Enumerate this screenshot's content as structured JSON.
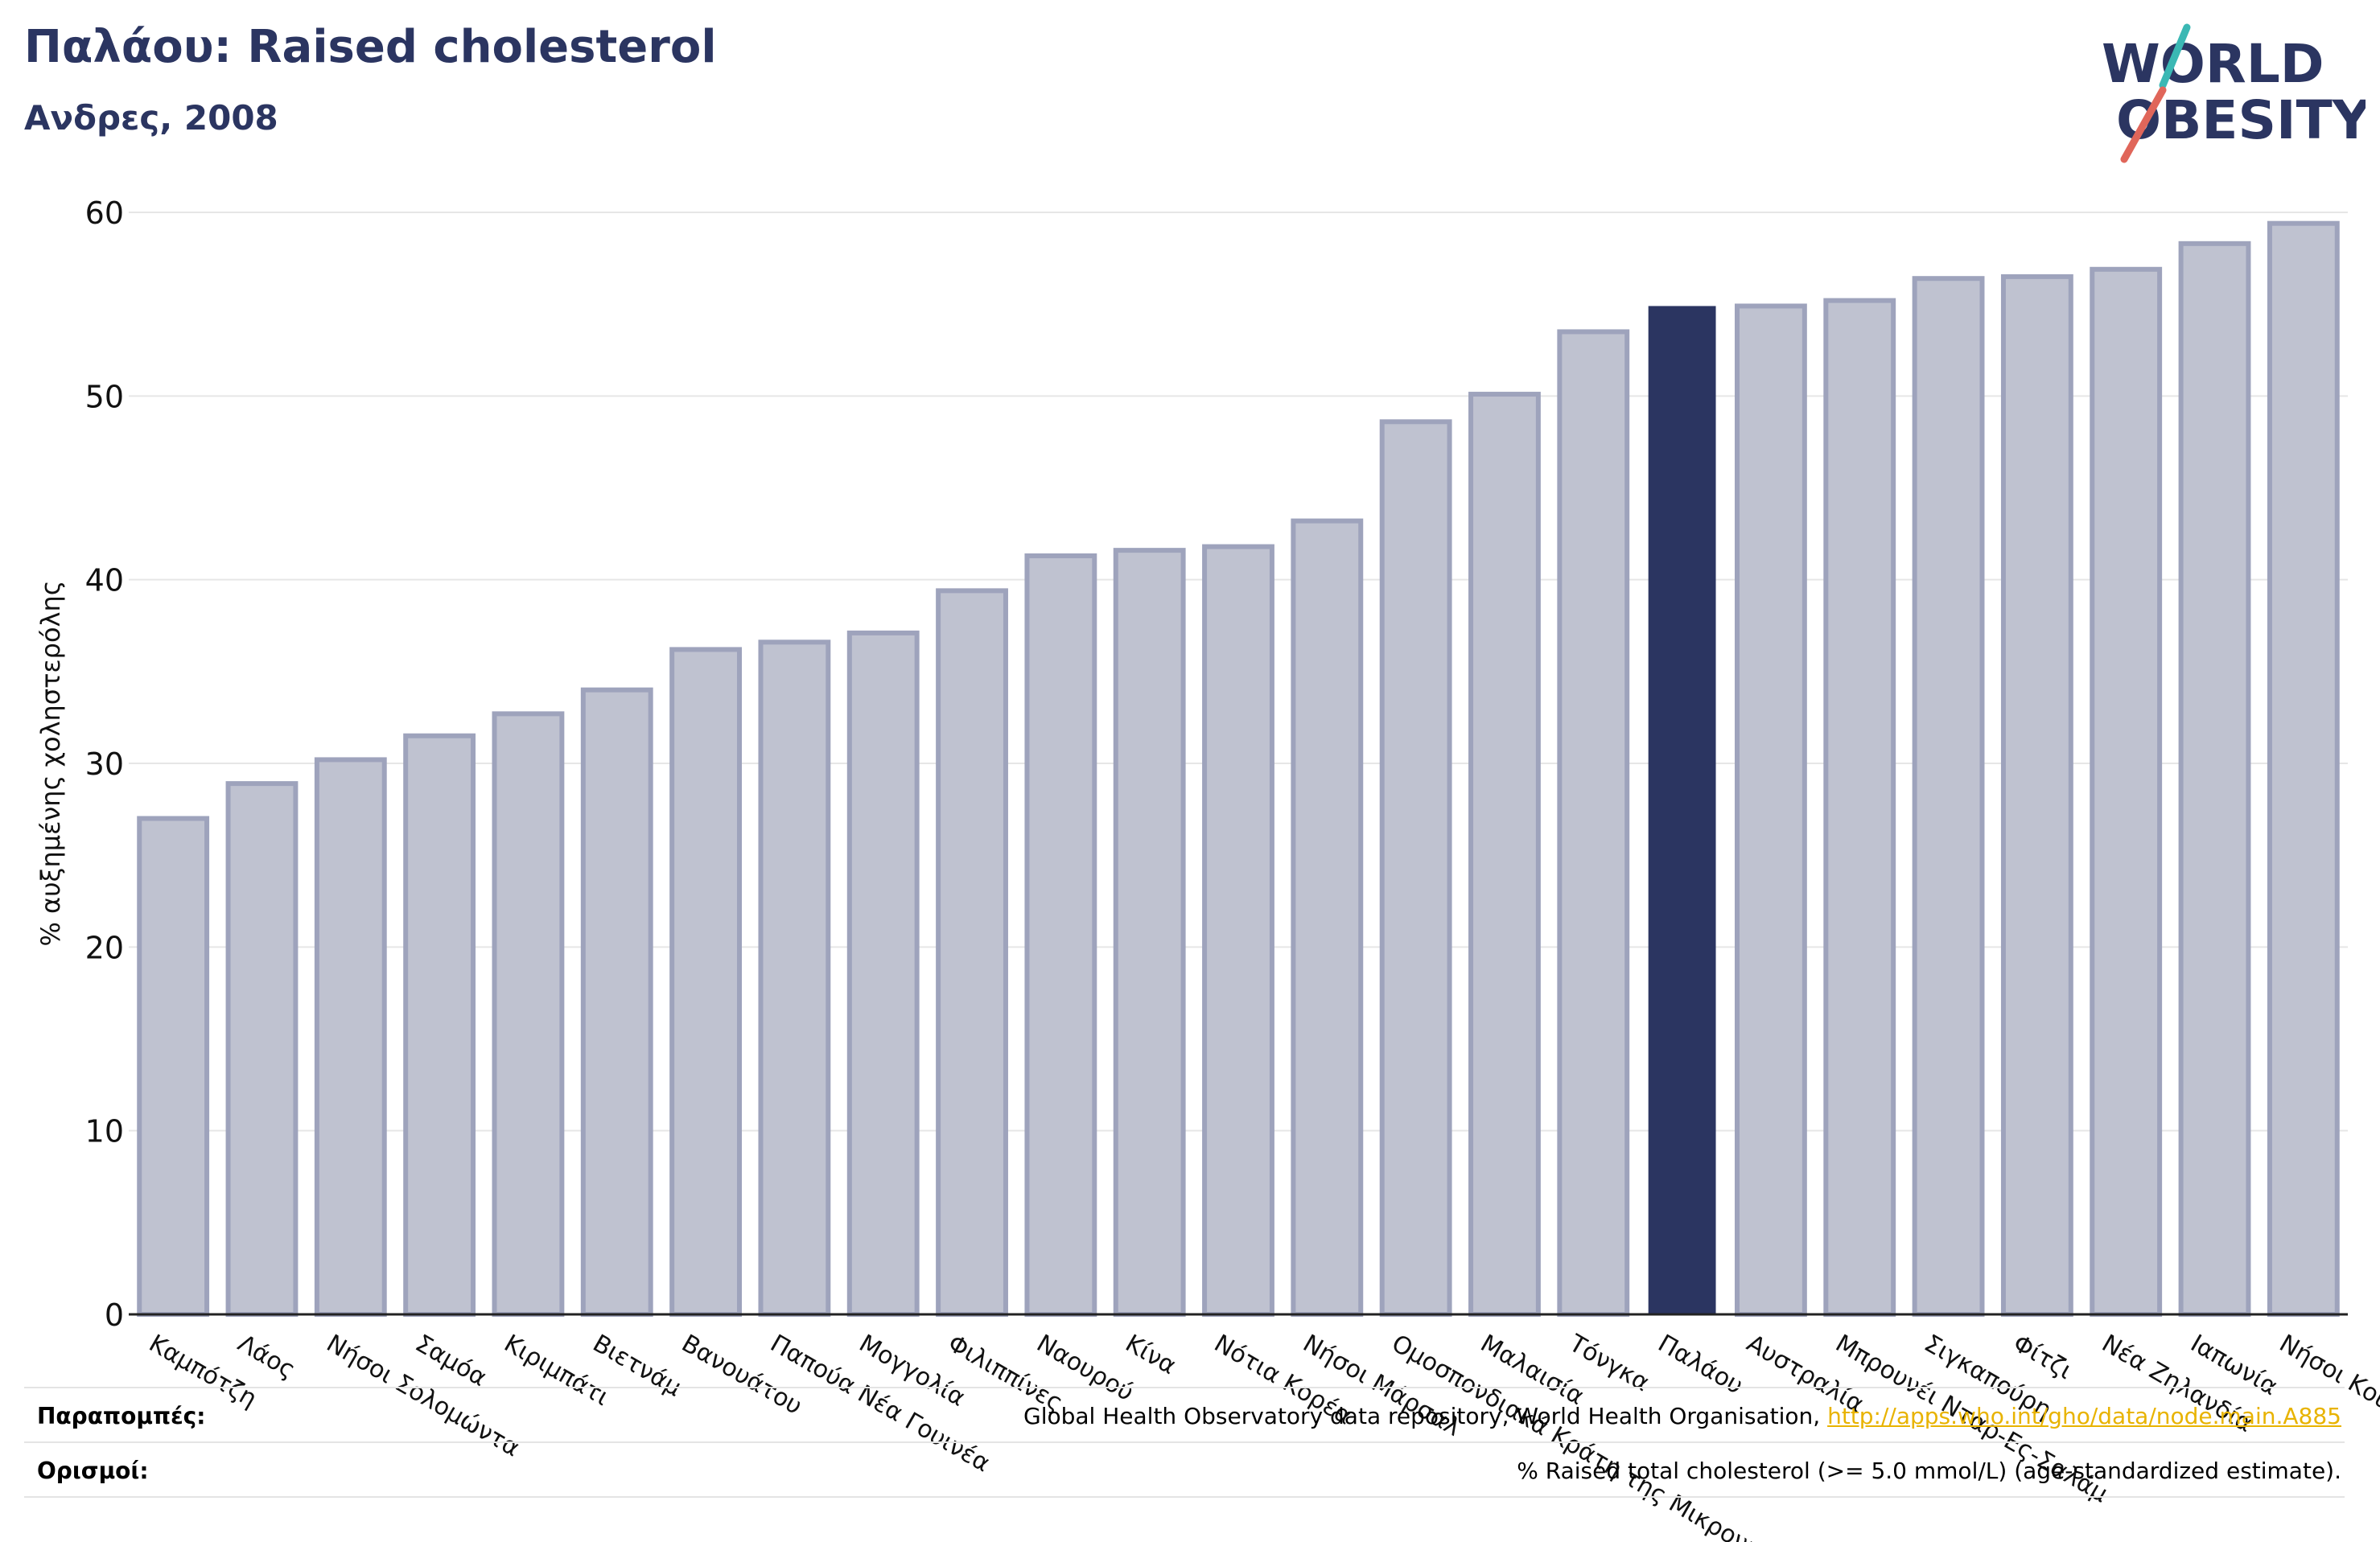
{
  "header": {
    "title": "Παλάου: Raised cholesterol",
    "subtitle": "Ανδρες, 2008"
  },
  "logo": {
    "line1": "WORLD",
    "line2": "OBESITY",
    "accent_teal": "#3bb8b4",
    "accent_red": "#e0665a"
  },
  "colors": {
    "bar": "#bfc2d0",
    "bar_border": "#9ea3bc",
    "highlight": "#2b3561",
    "text": "#2b3561"
  },
  "chart_data": {
    "type": "bar",
    "title": "Παλάου: Raised cholesterol",
    "subtitle": "Ανδρες, 2008",
    "ylabel": "% αυξημένης χοληστερόλης",
    "ylim": [
      0,
      60
    ],
    "yticks": [
      0,
      10,
      20,
      30,
      40,
      50,
      60
    ],
    "grid": true,
    "highlight": "Παλάου",
    "categories": [
      "Καμπότζη",
      "Λάος",
      "Νήσοι Σολομώντα",
      "Σαμόα",
      "Κιριμπάτι",
      "Βιετνάμ",
      "Βανουάτου",
      "Παπούα Νέα Γουινέα",
      "Μογγολία",
      "Φιλιππίνες",
      "Ναουρού",
      "Κίνα",
      "Νότια Κορέα",
      "Νήσοι Μάρσαλ",
      "Ομοσπονδιακά Κράτη της Μικρονησίας",
      "Μαλαισία",
      "Τόνγκα",
      "Παλάου",
      "Αυστραλία",
      "Μπρουνέι Νταρ-Ες-Σαλάμ",
      "Σιγκαπούρη",
      "Φίτζι",
      "Νέα Ζηλανδία",
      "Ιαπωνία",
      "Νήσοι Κουκ"
    ],
    "values": [
      27.0,
      28.9,
      30.2,
      31.5,
      32.7,
      34.0,
      36.2,
      36.6,
      37.1,
      39.4,
      41.3,
      41.6,
      41.8,
      43.2,
      48.6,
      50.1,
      53.5,
      54.9,
      54.9,
      55.2,
      56.4,
      56.5,
      56.9,
      58.3,
      59.4
    ]
  },
  "footer": {
    "references_label": "Παραπομπές:",
    "references_text": "Global Health Observatory data repository, World Health Organisation, ",
    "references_link": "http://apps.who.int/gho/data/node.main.A885",
    "definitions_label": "Ορισμοί:",
    "definitions_text": "% Raised total cholesterol (>= 5.0 mmol/L) (age-standardized estimate)."
  }
}
